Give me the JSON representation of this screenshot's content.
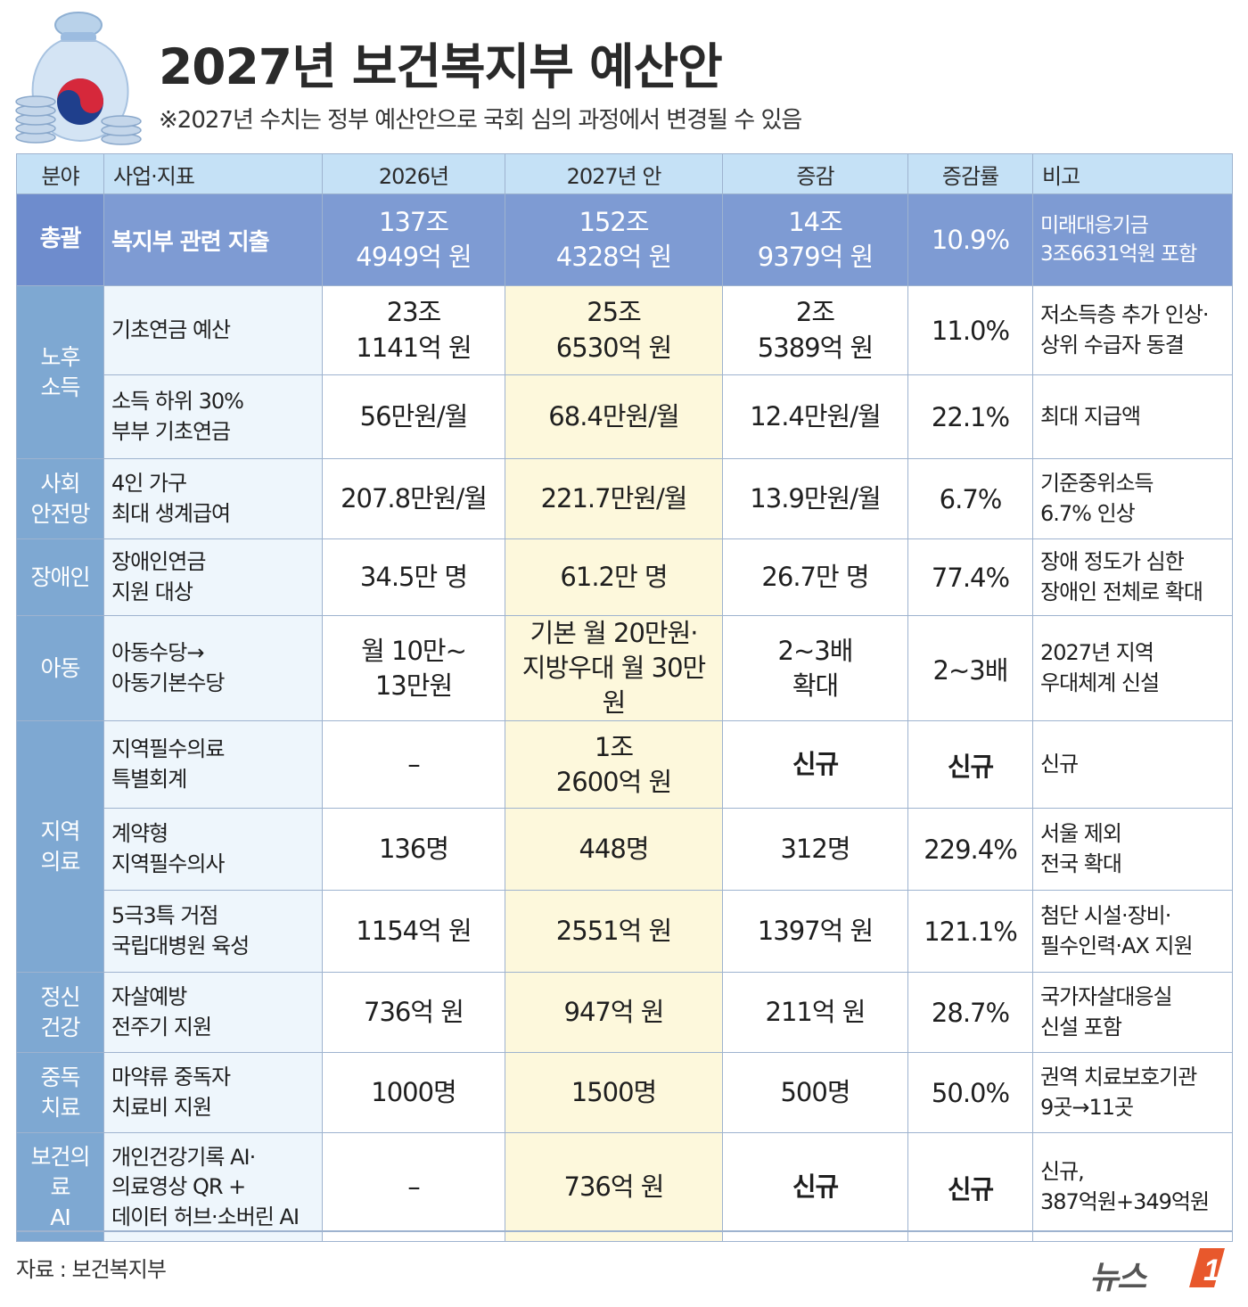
{
  "title": "2027년 보건복지부 예산안",
  "subtitle": "※2027년 수치는 정부 예산안으로 국회 심의 과정에서 변경될 수 있음",
  "columns": [
    "분야",
    "사업·지표",
    "2026년",
    "2027년 안",
    "증감",
    "증감률",
    "비고"
  ],
  "summary": {
    "category": "총괄",
    "item": "복지부 관련 지출",
    "y2026": [
      "137조",
      "4949억 원"
    ],
    "y2027": [
      "152조",
      "4328억 원"
    ],
    "change": [
      "14조",
      "9379억 원"
    ],
    "rate": "10.9%",
    "note": [
      "미래대응기금",
      "3조6631억원 포함"
    ]
  },
  "rows": [
    {
      "category": [
        "노후",
        "소득"
      ],
      "item": [
        "기초연금 예산"
      ],
      "y2026": [
        "23조",
        "1141억 원"
      ],
      "y2027": [
        "25조",
        "6530억 원"
      ],
      "change": [
        "2조",
        "5389억 원"
      ],
      "rate": "11.0%",
      "note": [
        "저소득층 추가 인상·",
        "상위 수급자 동결"
      ]
    },
    {
      "item": [
        "소득 하위 30%",
        "부부 기초연금"
      ],
      "y2026": [
        "56만원/월"
      ],
      "y2027": [
        "68.4만원/월"
      ],
      "change": [
        "12.4만원/월"
      ],
      "rate": "22.1%",
      "note": [
        "최대 지급액"
      ]
    },
    {
      "category": [
        "사회",
        "안전망"
      ],
      "item": [
        "4인 가구",
        "최대 생계급여"
      ],
      "y2026": [
        "207.8만원/월"
      ],
      "y2027": [
        "221.7만원/월"
      ],
      "change": [
        "13.9만원/월"
      ],
      "rate": "6.7%",
      "note": [
        "기준중위소득",
        "6.7% 인상"
      ]
    },
    {
      "category": [
        "장애인"
      ],
      "item": [
        "장애인연금",
        "지원 대상"
      ],
      "y2026": [
        "34.5만 명"
      ],
      "y2027": [
        "61.2만 명"
      ],
      "change": [
        "26.7만 명"
      ],
      "rate": "77.4%",
      "note": [
        "장애 정도가 심한",
        "장애인 전체로 확대"
      ]
    },
    {
      "category": [
        "아동"
      ],
      "item": [
        "아동수당→",
        "아동기본수당"
      ],
      "y2026": [
        "월 10만~",
        "13만원"
      ],
      "y2027": [
        "기본 월 20만원·",
        "지방우대 월 30만원"
      ],
      "change": [
        "2~3배",
        "확대"
      ],
      "rate": "2~3배",
      "note": [
        "2027년 지역",
        "우대체계 신설"
      ]
    },
    {
      "category": [
        "지역",
        "의료"
      ],
      "item": [
        "지역필수의료",
        "특별회계"
      ],
      "y2026": [
        "–"
      ],
      "y2027": [
        "1조",
        "2600억 원"
      ],
      "change": [
        "신규"
      ],
      "rate": "신규",
      "note": [
        "신규"
      ]
    },
    {
      "item": [
        "계약형",
        "지역필수의사"
      ],
      "y2026": [
        "136명"
      ],
      "y2027": [
        "448명"
      ],
      "change": [
        "312명"
      ],
      "rate": "229.4%",
      "note": [
        "서울 제외",
        "전국 확대"
      ]
    },
    {
      "item": [
        "5극3특 거점",
        "국립대병원 육성"
      ],
      "y2026": [
        "1154억 원"
      ],
      "y2027": [
        "2551억 원"
      ],
      "change": [
        "1397억 원"
      ],
      "rate": "121.1%",
      "note": [
        "첨단 시설·장비·",
        "필수인력·AX 지원"
      ]
    },
    {
      "category": [
        "정신",
        "건강"
      ],
      "item": [
        "자살예방",
        "전주기 지원"
      ],
      "y2026": [
        "736억 원"
      ],
      "y2027": [
        "947억 원"
      ],
      "change": [
        "211억 원"
      ],
      "rate": "28.7%",
      "note": [
        "국가자살대응실",
        "신설 포함"
      ]
    },
    {
      "category": [
        "중독",
        "치료"
      ],
      "item": [
        "마약류 중독자",
        "치료비 지원"
      ],
      "y2026": [
        "1000명"
      ],
      "y2027": [
        "1500명"
      ],
      "change": [
        "500명"
      ],
      "rate": "50.0%",
      "note": [
        "권역 치료보호기관",
        "9곳→11곳"
      ]
    },
    {
      "category": [
        "보건의료",
        "AI"
      ],
      "item": [
        "개인건강기록 AI·",
        "의료영상 QR +",
        "데이터 허브·소버린 AI"
      ],
      "y2026": [
        "–"
      ],
      "y2027": [
        "736억 원"
      ],
      "change": [
        "신규"
      ],
      "rate": "신규",
      "note": [
        "신규,",
        "387억원+349억원"
      ]
    }
  ],
  "source": "자료 : 보건복지부",
  "logo_text": "뉴스1",
  "colors": {
    "header_bg": "#c5e1f6",
    "summary_bg": "#7e9bd3",
    "category_bg": "#7ea8d2",
    "y2027_bg": "#fdf8dc",
    "item_bg": "#eef6fc",
    "logo_accent": "#e8582c"
  },
  "icons": {
    "illustration": "money-bag-icon",
    "emblem": "taegeuk-icon"
  }
}
